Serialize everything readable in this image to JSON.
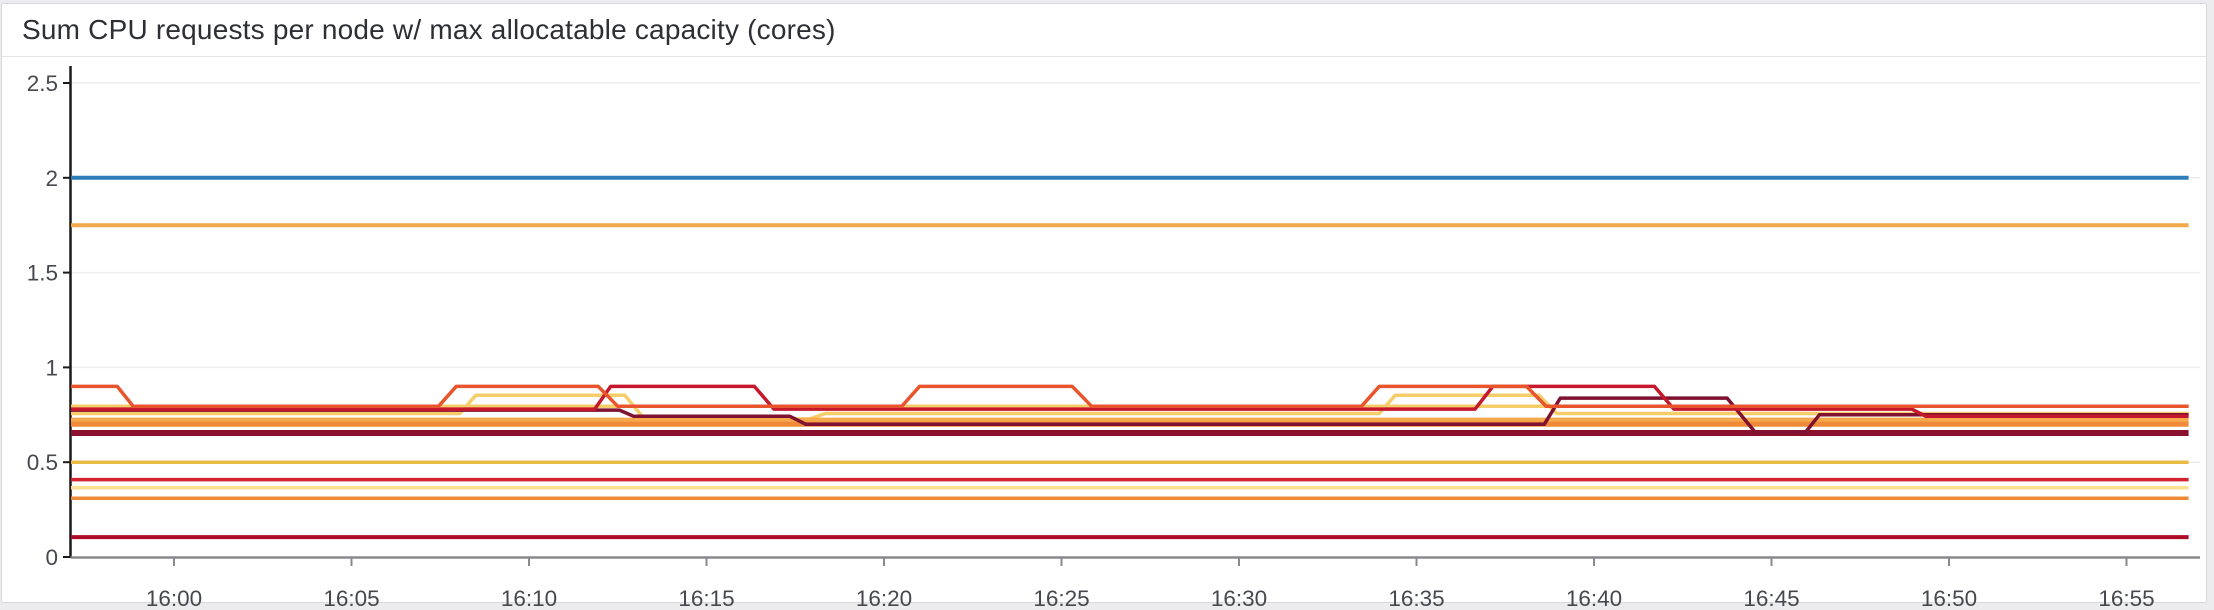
{
  "panel": {
    "title": "Sum CPU requests per node w/ max allocatable capacity (cores)",
    "background_color": "#ffffff",
    "page_background_color": "#ececee",
    "border_color": "#d9d9dc"
  },
  "chart_data": {
    "type": "line",
    "title": "Sum CPU requests per node w/ max allocatable capacity (cores)",
    "legend": "none",
    "grid": true,
    "grid_color": "#ededee",
    "x_axis": {
      "unit": "time",
      "tick_labels": [
        "16:00",
        "16:05",
        "16:10",
        "16:15",
        "16:20",
        "16:25",
        "16:30",
        "16:35",
        "16:40",
        "16:45",
        "16:50",
        "16:55"
      ],
      "tick_minutes": [
        0,
        5,
        10,
        15,
        20,
        25,
        30,
        35,
        40,
        45,
        50,
        55
      ],
      "range_minutes_from_1600": [
        -2.9,
        56.75
      ],
      "axis_color": "#8a8a8e"
    },
    "y_axis": {
      "tick_labels": [
        "0",
        "0.5",
        "1",
        "1.5",
        "2",
        "2.5"
      ],
      "tick_values": [
        0,
        0.5,
        1,
        1.5,
        2,
        2.5
      ],
      "range": [
        0,
        2.6
      ],
      "axis_color": "#1a1a1a"
    },
    "series": [
      {
        "id": "pale-yellow-high",
        "color": "#f7cd69",
        "width": 3.5,
        "points": [
          [
            -2.9,
            0.795
          ],
          [
            56.75,
            0.795
          ]
        ]
      },
      {
        "id": "pale-yellow-step",
        "color": "#f7cd69",
        "width": 3.5,
        "points": [
          [
            -2.9,
            0.757
          ],
          [
            8.05,
            0.757
          ],
          [
            8.5,
            0.853
          ],
          [
            12.7,
            0.853
          ],
          [
            13.25,
            0.728
          ],
          [
            17.9,
            0.728
          ],
          [
            18.35,
            0.757
          ],
          [
            33.95,
            0.757
          ],
          [
            34.4,
            0.853
          ],
          [
            38.45,
            0.853
          ],
          [
            38.95,
            0.757
          ],
          [
            56.75,
            0.757
          ]
        ]
      },
      {
        "id": "orange-band-upper",
        "color": "#f5a84c",
        "width": 5,
        "points": [
          [
            -2.9,
            0.722
          ],
          [
            56.75,
            0.722
          ]
        ]
      },
      {
        "id": "orange-band-lower",
        "color": "#ef8a38",
        "width": 5,
        "points": [
          [
            -2.9,
            0.7
          ],
          [
            56.75,
            0.7
          ]
        ]
      },
      {
        "id": "yellow-0.50",
        "color": "#eabb44",
        "width": 3.5,
        "points": [
          [
            -2.9,
            0.5
          ],
          [
            56.75,
            0.5
          ]
        ]
      },
      {
        "id": "red-0.41",
        "color": "#d2232f",
        "width": 3.5,
        "points": [
          [
            -2.9,
            0.408
          ],
          [
            56.75,
            0.408
          ]
        ]
      },
      {
        "id": "pale-yellow-0.36",
        "color": "#fae093",
        "width": 3.5,
        "points": [
          [
            -2.9,
            0.365
          ],
          [
            56.75,
            0.365
          ]
        ]
      },
      {
        "id": "orange-0.31",
        "color": "#ef8a38",
        "width": 3.5,
        "points": [
          [
            -2.9,
            0.31
          ],
          [
            56.75,
            0.31
          ]
        ]
      },
      {
        "id": "dark-red-0.10",
        "color": "#ad0c26",
        "width": 4,
        "points": [
          [
            -2.9,
            0.105
          ],
          [
            56.75,
            0.105
          ]
        ]
      },
      {
        "id": "maroon-thick-0.65",
        "color": "#8a102e",
        "width": 6,
        "points": [
          [
            -2.9,
            0.654
          ],
          [
            56.75,
            0.654
          ]
        ]
      },
      {
        "id": "maroon-step",
        "color": "#7e1230",
        "width": 3.5,
        "points": [
          [
            -2.9,
            0.775
          ],
          [
            12.55,
            0.775
          ],
          [
            12.95,
            0.742
          ],
          [
            17.35,
            0.742
          ],
          [
            17.8,
            0.7
          ],
          [
            38.6,
            0.7
          ],
          [
            39.05,
            0.838
          ],
          [
            43.75,
            0.838
          ],
          [
            44.55,
            0.656
          ],
          [
            45.95,
            0.656
          ],
          [
            46.35,
            0.75
          ],
          [
            56.75,
            0.75
          ]
        ]
      },
      {
        "id": "crimson-step",
        "color": "#c6182c",
        "width": 3.5,
        "points": [
          [
            -2.9,
            0.78
          ],
          [
            11.85,
            0.78
          ],
          [
            12.3,
            0.9
          ],
          [
            16.35,
            0.9
          ],
          [
            16.9,
            0.78
          ],
          [
            36.65,
            0.78
          ],
          [
            37.15,
            0.9
          ],
          [
            41.7,
            0.9
          ],
          [
            42.25,
            0.78
          ],
          [
            48.95,
            0.78
          ],
          [
            49.35,
            0.742
          ],
          [
            56.75,
            0.742
          ]
        ]
      },
      {
        "id": "tomato-step",
        "color": "#e8552d",
        "width": 3.5,
        "points": [
          [
            -2.9,
            0.9
          ],
          [
            -1.6,
            0.9
          ],
          [
            -1.15,
            0.795
          ],
          [
            7.45,
            0.795
          ],
          [
            7.95,
            0.9
          ],
          [
            11.95,
            0.9
          ],
          [
            12.5,
            0.795
          ],
          [
            20.5,
            0.795
          ],
          [
            21.0,
            0.9
          ],
          [
            25.3,
            0.9
          ],
          [
            25.85,
            0.795
          ],
          [
            33.45,
            0.795
          ],
          [
            33.95,
            0.9
          ],
          [
            38.1,
            0.9
          ],
          [
            38.65,
            0.795
          ],
          [
            56.75,
            0.795
          ]
        ]
      },
      {
        "id": "blue-2.00",
        "color": "#2e7cb8",
        "width": 4,
        "points": [
          [
            -2.9,
            2.0
          ],
          [
            56.75,
            2.0
          ]
        ]
      },
      {
        "id": "orange-1.75",
        "color": "#f2a84c",
        "width": 4,
        "points": [
          [
            -2.9,
            1.75
          ],
          [
            56.75,
            1.75
          ]
        ]
      }
    ]
  }
}
